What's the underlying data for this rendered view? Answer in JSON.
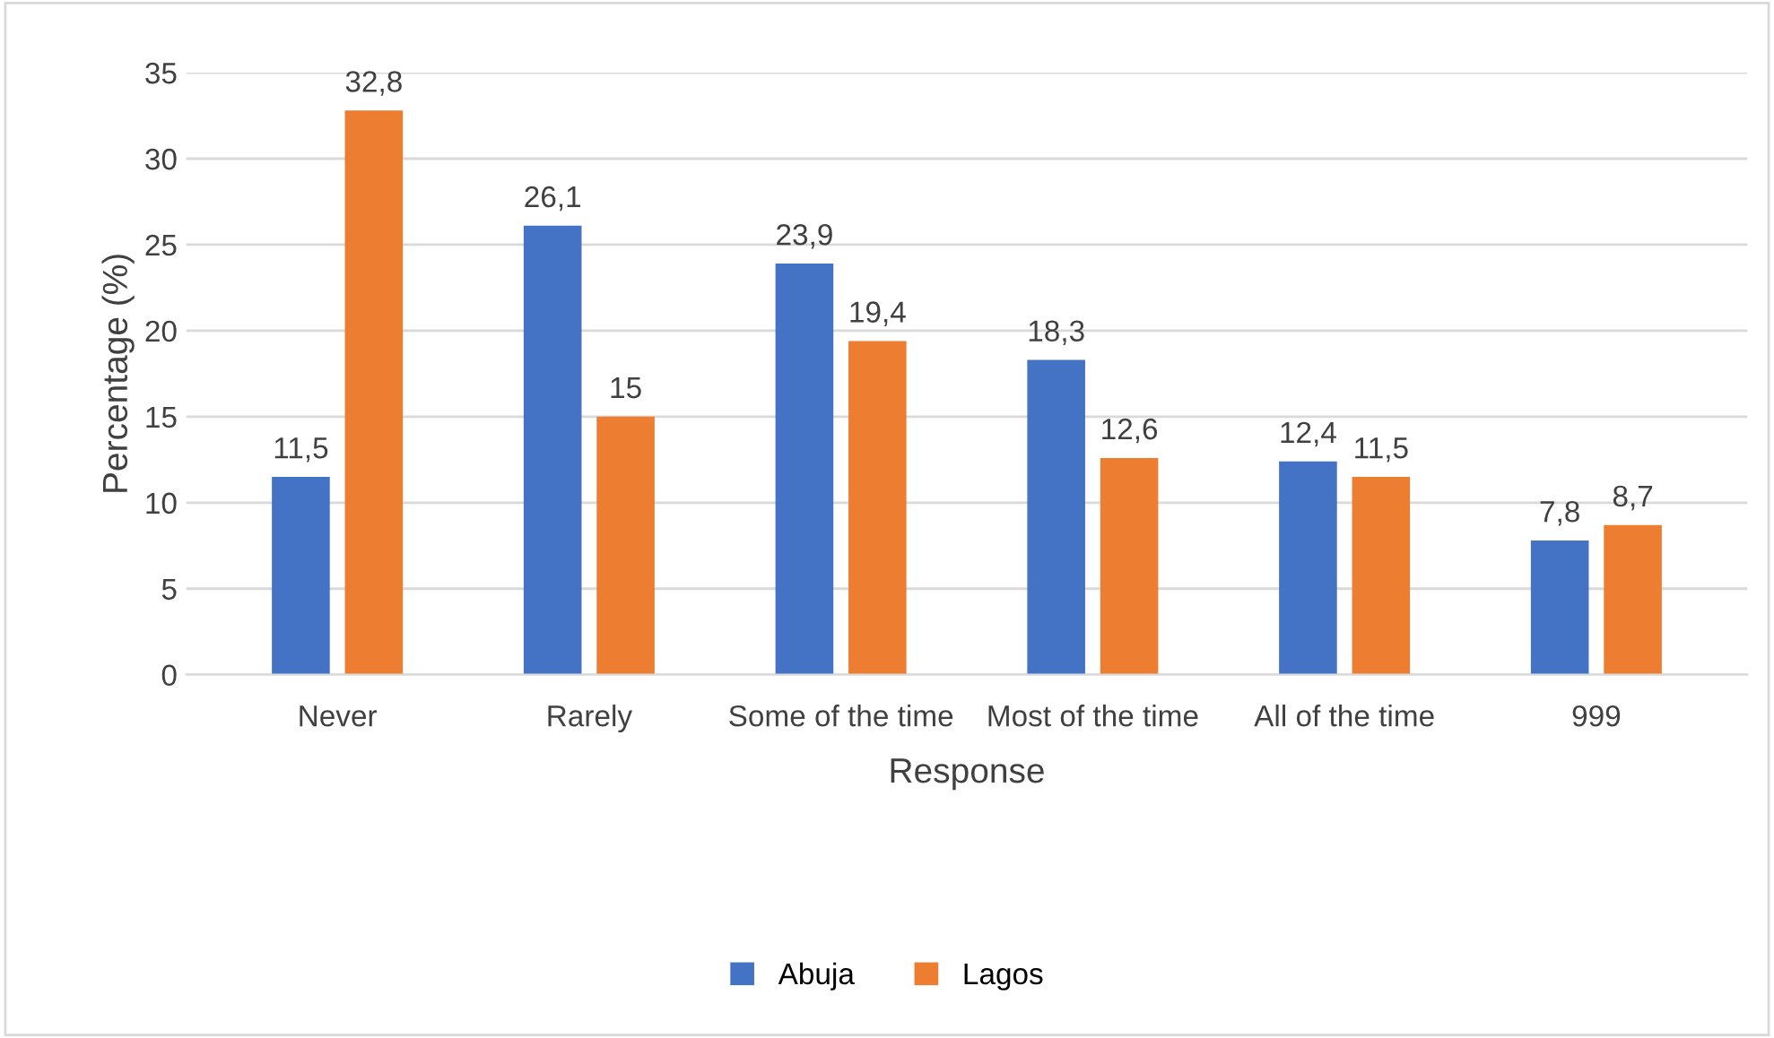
{
  "chart_data": {
    "type": "bar",
    "xlabel": "Response",
    "ylabel": "Percentage (%)",
    "categories": [
      "Never",
      "Rarely",
      "Some of the time",
      "Most of the time",
      "All of the time",
      "999"
    ],
    "series": [
      {
        "name": "Abuja",
        "color": "#4472c4",
        "values": [
          11.5,
          26.1,
          23.9,
          18.3,
          12.4,
          7.8
        ],
        "value_labels": [
          "11,5",
          "26,1",
          "23,9",
          "18,3",
          "12,4",
          "7,8"
        ]
      },
      {
        "name": "Lagos",
        "color": "#ed7d31",
        "values": [
          32.8,
          15,
          19.4,
          12.6,
          11.5,
          8.7
        ],
        "value_labels": [
          "32,8",
          "15",
          "19,4",
          "12,6",
          "11,5",
          "8,7"
        ]
      }
    ],
    "ylim": [
      0,
      35
    ],
    "yticks": [
      0,
      5,
      10,
      15,
      20,
      25,
      30,
      35
    ],
    "grid": "y",
    "legend": "bottom"
  }
}
